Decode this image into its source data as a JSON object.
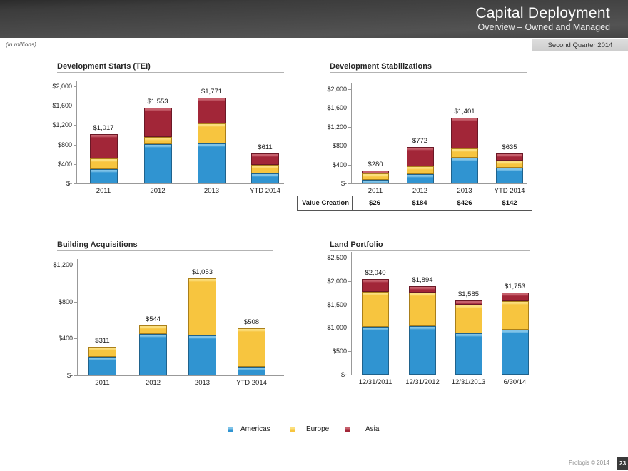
{
  "header": {
    "title": "Capital Deployment",
    "subtitle": "Overview – Owned and Managed"
  },
  "meta": {
    "units_note": "(in millions)",
    "quarter_badge": "Second Quarter 2014",
    "footer_text": "Prologis © 2014",
    "page_number": "23"
  },
  "colors": {
    "americas": {
      "fill": "#3094D1",
      "border": "#1F628C",
      "highlight": "#7FC3E8"
    },
    "europe": {
      "fill": "#F7C53F",
      "border": "#AA7F1A",
      "highlight": "#FBDF7D"
    },
    "asia": {
      "fill": "#A22638",
      "border": "#6B1826",
      "highlight": "#C6606C"
    }
  },
  "legend": {
    "items": [
      {
        "label": "Americas",
        "series": "americas"
      },
      {
        "label": "Europe",
        "series": "europe"
      },
      {
        "label": "Asia",
        "series": "asia"
      }
    ]
  },
  "chart_data": [
    {
      "id": "development-starts",
      "type": "bar",
      "stacked": true,
      "title": "Development Starts (TEI)",
      "categories": [
        "2011",
        "2012",
        "2013",
        "YTD 2014"
      ],
      "series": [
        {
          "name": "Americas",
          "values": [
            300,
            810,
            830,
            200
          ]
        },
        {
          "name": "Europe",
          "values": [
            220,
            150,
            400,
            185
          ]
        },
        {
          "name": "Asia",
          "values": [
            497,
            593,
            541,
            226
          ]
        }
      ],
      "totals": [
        1017,
        1553,
        1771,
        611
      ],
      "total_labels": [
        "$1,017",
        "$1,553",
        "$1,771",
        "$611"
      ],
      "y_ticks": [
        "$-",
        "$400",
        "$800",
        "$1,200",
        "$1,600",
        "$2,000"
      ],
      "y_tick_values": [
        0,
        400,
        800,
        1200,
        1600,
        2000
      ],
      "ylim": [
        0,
        2000
      ],
      "grid": false,
      "legend_position": "shared-bottom"
    },
    {
      "id": "development-stabilizations",
      "type": "bar",
      "stacked": true,
      "title": "Development Stabilizations",
      "categories": [
        "2011",
        "2012",
        "2013",
        "YTD 2014"
      ],
      "series": [
        {
          "name": "Americas",
          "values": [
            70,
            190,
            545,
            335
          ]
        },
        {
          "name": "Europe",
          "values": [
            147,
            170,
            200,
            155
          ]
        },
        {
          "name": "Asia",
          "values": [
            63,
            412,
            656,
            145
          ]
        }
      ],
      "totals": [
        280,
        772,
        1401,
        635
      ],
      "total_labels": [
        "$280",
        "$772",
        "$1,401",
        "$635"
      ],
      "y_ticks": [
        "$-",
        "$400",
        "$800",
        "$1,200",
        "$1,600",
        "$2,000"
      ],
      "y_tick_values": [
        0,
        400,
        800,
        1200,
        1600,
        2000
      ],
      "ylim": [
        0,
        2000
      ],
      "grid": false,
      "legend_position": "shared-bottom"
    },
    {
      "id": "building-acquisitions",
      "type": "bar",
      "stacked": true,
      "title": "Building Acquisitions",
      "categories": [
        "2011",
        "2012",
        "2013",
        "YTD 2014"
      ],
      "series": [
        {
          "name": "Americas",
          "values": [
            200,
            450,
            430,
            95
          ]
        },
        {
          "name": "Europe",
          "values": [
            111,
            94,
            623,
            413
          ]
        }
      ],
      "totals": [
        311,
        544,
        1053,
        508
      ],
      "total_labels": [
        "$311",
        "$544",
        "$1,053",
        "$508"
      ],
      "y_ticks": [
        "$-",
        "$400",
        "$800",
        "$1,200"
      ],
      "y_tick_values": [
        0,
        400,
        800,
        1200
      ],
      "ylim": [
        0,
        1200
      ],
      "grid": false,
      "legend_position": "shared-bottom"
    },
    {
      "id": "land-portfolio",
      "type": "bar",
      "stacked": true,
      "title": "Land Portfolio",
      "categories": [
        "12/31/2011",
        "12/31/2012",
        "12/31/2013",
        "6/30/14"
      ],
      "series": [
        {
          "name": "Americas",
          "values": [
            1020,
            1040,
            890,
            960
          ]
        },
        {
          "name": "Europe",
          "values": [
            750,
            710,
            610,
            610
          ]
        },
        {
          "name": "Asia",
          "values": [
            270,
            144,
            85,
            183
          ]
        }
      ],
      "totals": [
        2040,
        1894,
        1585,
        1753
      ],
      "total_labels": [
        "$2,040",
        "$1,894",
        "$1,585",
        "$1,753"
      ],
      "y_ticks": [
        "$-",
        "$500",
        "$1,000",
        "$1,500",
        "$2,000",
        "$2,500"
      ],
      "y_tick_values": [
        0,
        500,
        1000,
        1500,
        2000,
        2500
      ],
      "ylim": [
        0,
        2500
      ],
      "grid": false,
      "legend_position": "shared-bottom"
    }
  ],
  "value_creation": {
    "label": "Value Creation",
    "values": [
      "$26",
      "$184",
      "$426",
      "$142"
    ]
  }
}
